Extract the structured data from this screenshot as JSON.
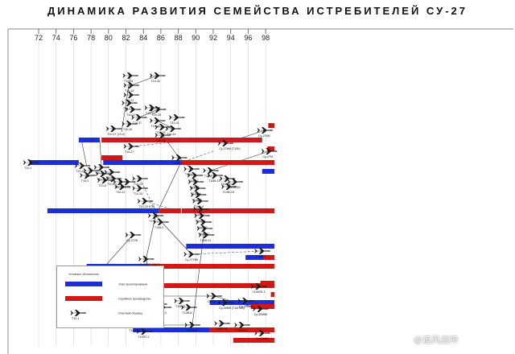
{
  "title": "ДИНАМИКА РАЗВИТИЯ СЕМЕЙСТВА ИСТРЕБИТЕЛЕЙ СУ-27",
  "years": [
    "72",
    "74",
    "76",
    "78",
    "80",
    "82",
    "84",
    "86",
    "88",
    "90",
    "92",
    "94",
    "96",
    "98"
  ],
  "colors": {
    "development": "#1c2fd6",
    "production": "#d01818",
    "line": "#333333",
    "dashed": "#555555"
  },
  "legend": {
    "title": "Условные обозначения",
    "items": [
      {
        "label": "Этап проектирования",
        "color": "#1c2fd6"
      },
      {
        "label": "Серийное производство",
        "color": "#d01818"
      },
      {
        "label": "Опытный образец",
        "color": "#000000",
        "sublabel": "Т10-1"
      }
    ]
  },
  "bars": [
    {
      "type": "development",
      "from": 71.0,
      "to": 76.6,
      "row": 202
    },
    {
      "type": "development",
      "from": 76.6,
      "to": 79.0,
      "row": 174
    },
    {
      "type": "production",
      "from": 79.2,
      "to": 89.0,
      "row": 174
    },
    {
      "type": "production",
      "from": 89.0,
      "to": 97.6,
      "row": 174
    },
    {
      "type": "production",
      "from": 98.3,
      "to": 99.0,
      "row": 156
    },
    {
      "type": "development",
      "from": 79.4,
      "to": 88.3,
      "row": 202
    },
    {
      "type": "production",
      "from": 79.2,
      "to": 81.6,
      "row": 196
    },
    {
      "type": "production",
      "from": 88.3,
      "to": 99.0,
      "row": 202
    },
    {
      "type": "production",
      "from": 98.2,
      "to": 99.0,
      "row": 185
    },
    {
      "type": "development",
      "from": 97.6,
      "to": 99.0,
      "row": 213
    },
    {
      "type": "development",
      "from": 73.0,
      "to": 85.8,
      "row": 262
    },
    {
      "type": "production",
      "from": 85.8,
      "to": 88.3,
      "row": 262
    },
    {
      "type": "production",
      "from": 88.4,
      "to": 99.0,
      "row": 262
    },
    {
      "type": "development",
      "from": 88.9,
      "to": 99.0,
      "row": 306
    },
    {
      "type": "development",
      "from": 77.5,
      "to": 84.6,
      "row": 331
    },
    {
      "type": "production",
      "from": 84.6,
      "to": 89.0,
      "row": 331
    },
    {
      "type": "production",
      "from": 89.0,
      "to": 99.0,
      "row": 331
    },
    {
      "type": "development",
      "from": 95.7,
      "to": 97.8,
      "row": 320
    },
    {
      "type": "production",
      "from": 97.8,
      "to": 99.0,
      "row": 320
    },
    {
      "type": "production",
      "from": 86.1,
      "to": 99.0,
      "row": 355
    },
    {
      "type": "production",
      "from": 97.4,
      "to": 99.0,
      "row": 352
    },
    {
      "type": "production",
      "from": 98.6,
      "to": 99.0,
      "row": 366
    },
    {
      "type": "development",
      "from": 91.6,
      "to": 99.0,
      "row": 376
    },
    {
      "type": "production",
      "from": 96.3,
      "to": 99.0,
      "row": 381
    },
    {
      "type": "development",
      "from": 82.8,
      "to": 91.6,
      "row": 410
    },
    {
      "type": "production",
      "from": 91.6,
      "to": 99.0,
      "row": 410
    },
    {
      "type": "production",
      "from": 94.3,
      "to": 99.0,
      "row": 423
    }
  ],
  "aircraft": [
    {
      "label": "Т10-1",
      "year": 71.1,
      "row": 202
    },
    {
      "label": "Т10-3",
      "year": 77.0,
      "row": 206
    },
    {
      "label": "Т10-7",
      "year": 78.0,
      "row": 212
    },
    {
      "label": "Т10-2",
      "year": 77.6,
      "row": 218
    },
    {
      "label": "Т10-4",
      "year": 79.2,
      "row": 208
    },
    {
      "label": "Т10-5",
      "year": 79.4,
      "row": 216
    },
    {
      "label": "Т10-6",
      "year": 79.6,
      "row": 224
    },
    {
      "label": "Т10-9",
      "year": 80.4,
      "row": 214
    },
    {
      "label": "Т10-10",
      "year": 80.6,
      "row": 222
    },
    {
      "label": "Т10-11",
      "year": 81.4,
      "row": 226
    },
    {
      "label": "Т10-12",
      "year": 81.6,
      "row": 232
    },
    {
      "label": "Т10-15",
      "year": 82.5,
      "row": 94
    },
    {
      "label": "Т10-18",
      "year": 82.6,
      "row": 106
    },
    {
      "label": "Т10-21",
      "year": 82.6,
      "row": 118
    },
    {
      "label": "Т10-17",
      "year": 82.4,
      "row": 128
    },
    {
      "label": "Т10-22",
      "year": 82.8,
      "row": 136
    },
    {
      "label": "Т10-17 (10-2)",
      "year": 80.6,
      "row": 160
    },
    {
      "label": "Т10-26",
      "year": 82.4,
      "row": 154
    },
    {
      "label": "Т10-27",
      "year": 82.6,
      "row": 182
    },
    {
      "label": "Т10-37",
      "year": 83.5,
      "row": 146
    },
    {
      "label": "Т10-23",
      "year": 83.6,
      "row": 222
    },
    {
      "label": "Т10-25",
      "year": 82.2,
      "row": 226
    },
    {
      "label": "Т10-20",
      "year": 83.6,
      "row": 234
    },
    {
      "label": "Т10-20 КТМ",
      "year": 84.2,
      "row": 250
    },
    {
      "label": "Т10-40",
      "year": 85.6,
      "row": 94
    },
    {
      "label": "Т10-24",
      "year": 85.0,
      "row": 134
    },
    {
      "label": "Т10-39",
      "year": 85.7,
      "row": 136
    },
    {
      "label": "Т10-42",
      "year": 85.6,
      "row": 150
    },
    {
      "label": "Т10-33",
      "year": 86.2,
      "row": 158
    },
    {
      "label": "Т10-41",
      "year": 87.8,
      "row": 146
    },
    {
      "label": "Т10-43",
      "year": 87.4,
      "row": 160
    },
    {
      "label": "Т10-24",
      "year": 86.2,
      "row": 168
    },
    {
      "label": "Т10П-1",
      "year": 88.1,
      "row": 196
    },
    {
      "label": "Т10М-1",
      "year": 89.5,
      "row": 210
    },
    {
      "label": "Т10М-2",
      "year": 89.9,
      "row": 218
    },
    {
      "label": "Т10М-3",
      "year": 90.0,
      "row": 226
    },
    {
      "label": "Т10М-4",
      "year": 90.2,
      "row": 234
    },
    {
      "label": "Т10М-5",
      "year": 90.3,
      "row": 242
    },
    {
      "label": "Т10М-6",
      "year": 90.5,
      "row": 250
    },
    {
      "label": "Т10М-7",
      "year": 90.6,
      "row": 260
    },
    {
      "label": "Т10М-8",
      "year": 90.7,
      "row": 268
    },
    {
      "label": "Т10М-9",
      "year": 90.9,
      "row": 276
    },
    {
      "label": "Т10М-10",
      "year": 91.0,
      "row": 284
    },
    {
      "label": "Т10М-11",
      "year": 91.2,
      "row": 292
    },
    {
      "label": "Т10М-12",
      "year": 91.7,
      "row": 212
    },
    {
      "label": "Т10М-13",
      "year": 92.2,
      "row": 218
    },
    {
      "label": "Т10М-14",
      "year": 93.6,
      "row": 222
    },
    {
      "label": "Т10М-15",
      "year": 93.8,
      "row": 232
    },
    {
      "label": "Т10М-16",
      "year": 94.5,
      "row": 226
    },
    {
      "label": "Су-27КМ",
      "year": 97.9,
      "row": 162
    },
    {
      "label": "Су-27М",
      "year": 98.4,
      "row": 188
    },
    {
      "label": "Су-27КМ (Т10К)",
      "year": 93.4,
      "row": 178
    },
    {
      "label": "Т10К-1",
      "year": 85.4,
      "row": 268
    },
    {
      "label": "Т10К-2",
      "year": 86.0,
      "row": 276
    },
    {
      "label": "Су-27УБ",
      "year": 82.8,
      "row": 292
    },
    {
      "label": "Т10У-1",
      "year": 79.0,
      "row": 338
    },
    {
      "label": "Су-27УБ (МАП)",
      "year": 84.3,
      "row": 322
    },
    {
      "label": "Су-27УБК",
      "year": 89.5,
      "row": 316
    },
    {
      "label": "Т10Ш-1",
      "year": 97.6,
      "row": 312
    },
    {
      "label": "Т10В-1",
      "year": 85.4,
      "row": 368
    },
    {
      "label": "Т10В-2",
      "year": 85.8,
      "row": 378
    },
    {
      "label": "Т10В-3",
      "year": 86.3,
      "row": 382
    },
    {
      "label": "Т10В-5",
      "year": 88.4,
      "row": 374
    },
    {
      "label": "Т10В-6",
      "year": 89.2,
      "row": 382
    },
    {
      "label": "Су-30",
      "year": 92.1,
      "row": 368
    },
    {
      "label": "Су-30МК (Т10ПМК)",
      "year": 93.4,
      "row": 376
    },
    {
      "label": "Су-30МКИ",
      "year": 95.7,
      "row": 374
    },
    {
      "label": "Су-30МКК",
      "year": 97.4,
      "row": 384
    },
    {
      "label": "Т10КУБ-1",
      "year": 97.2,
      "row": 356
    },
    {
      "label": "Т10ПУ-1",
      "year": 83.1,
      "row": 404
    },
    {
      "label": "Т10ПУ-2",
      "year": 84.1,
      "row": 412
    },
    {
      "label": "Т10ПУ-5",
      "year": 89.6,
      "row": 404
    },
    {
      "label": "Т10ПУ-6",
      "year": 93.0,
      "row": 402
    },
    {
      "label": "Т10ПМ-1",
      "year": 95.3,
      "row": 404
    },
    {
      "label": "Су-30МК2",
      "year": 97.6,
      "row": 414
    }
  ],
  "links": [
    {
      "from": [
        76.9,
        174
      ],
      "to": [
        77.5,
        206
      ]
    },
    {
      "from": [
        79.0,
        174
      ],
      "to": [
        79.2,
        208
      ]
    },
    {
      "from": [
        81.5,
        164
      ],
      "to": [
        82.5,
        94
      ]
    },
    {
      "from": [
        82.6,
        106
      ],
      "to": [
        85.6,
        94
      ]
    },
    {
      "from": [
        83.5,
        146
      ],
      "to": [
        85.7,
        136
      ]
    },
    {
      "from": [
        85.6,
        150
      ],
      "to": [
        87.4,
        160
      ]
    },
    {
      "from": [
        86.2,
        168
      ],
      "to": [
        88.1,
        196
      ]
    },
    {
      "from": [
        88.1,
        196
      ],
      "to": [
        89.5,
        210
      ]
    },
    {
      "from": [
        88.3,
        202
      ],
      "to": [
        85.4,
        268
      ]
    },
    {
      "from": [
        85.4,
        268
      ],
      "to": [
        84.3,
        322
      ]
    },
    {
      "from": [
        85.4,
        268
      ],
      "to": [
        89.5,
        316
      ]
    },
    {
      "from": [
        82.8,
        292
      ],
      "to": [
        79.0,
        338
      ]
    },
    {
      "from": [
        84.3,
        322
      ],
      "to": [
        85.4,
        368
      ]
    },
    {
      "from": [
        85.4,
        368
      ],
      "to": [
        92.1,
        368
      ]
    },
    {
      "from": [
        92.1,
        368
      ],
      "to": [
        97.4,
        384
      ]
    },
    {
      "from": [
        84.1,
        404
      ],
      "to": [
        89.6,
        404
      ]
    },
    {
      "from": [
        91.0,
        284
      ],
      "to": [
        89.6,
        404
      ]
    },
    {
      "from": [
        93.4,
        178
      ],
      "to": [
        97.9,
        162
      ]
    },
    {
      "from": [
        91.7,
        212
      ],
      "to": [
        98.4,
        188
      ]
    }
  ],
  "dashed_links": [
    {
      "from": [
        82.6,
        182
      ],
      "to": [
        90.0,
        174
      ]
    },
    {
      "from": [
        83.6,
        222
      ],
      "to": [
        86.0,
        276
      ]
    },
    {
      "from": [
        84.2,
        250
      ],
      "to": [
        87.8,
        262
      ]
    },
    {
      "from": [
        88.3,
        202
      ],
      "to": [
        92.0,
        188
      ]
    },
    {
      "from": [
        89.5,
        316
      ],
      "to": [
        97.6,
        312
      ]
    }
  ],
  "watermark": "@追风战神"
}
